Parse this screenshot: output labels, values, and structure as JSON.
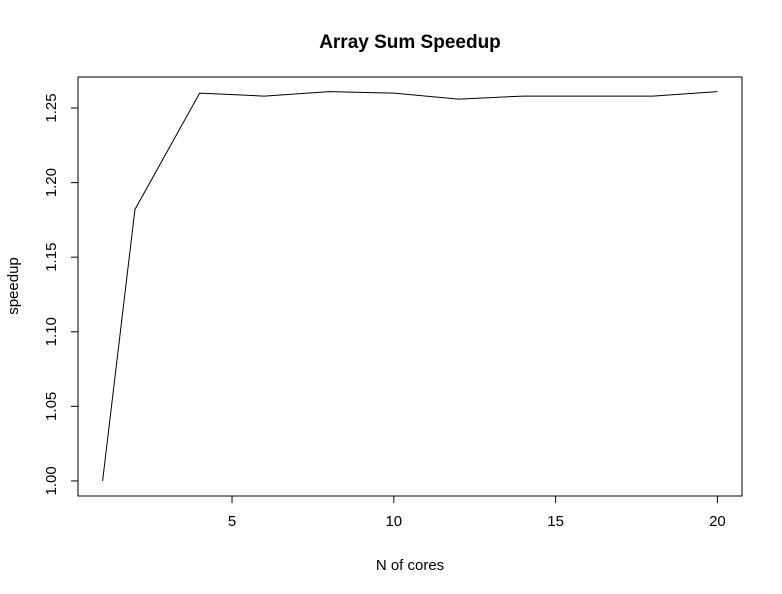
{
  "chart_data": {
    "type": "line",
    "title": "Array Sum Speedup",
    "xlabel": "N of cores",
    "ylabel": "speedup",
    "xlim": [
      0.24,
      20.76
    ],
    "ylim": [
      0.9899,
      1.2708
    ],
    "xticks": [
      5,
      10,
      15,
      20
    ],
    "xtick_labels": [
      "5",
      "10",
      "15",
      "20"
    ],
    "yticks": [
      1.0,
      1.05,
      1.1,
      1.15,
      1.2,
      1.25
    ],
    "ytick_labels": [
      "1.00",
      "1.05",
      "1.10",
      "1.15",
      "1.20",
      "1.25"
    ],
    "grid": false,
    "legend": "none",
    "series": [
      {
        "x": [
          1,
          2,
          4,
          6,
          8,
          10,
          12,
          14,
          16,
          18,
          20
        ],
        "y": [
          1.0,
          1.182,
          1.26,
          1.258,
          1.261,
          1.26,
          1.256,
          1.258,
          1.258,
          1.258,
          1.261
        ],
        "color": "#000000"
      }
    ]
  }
}
